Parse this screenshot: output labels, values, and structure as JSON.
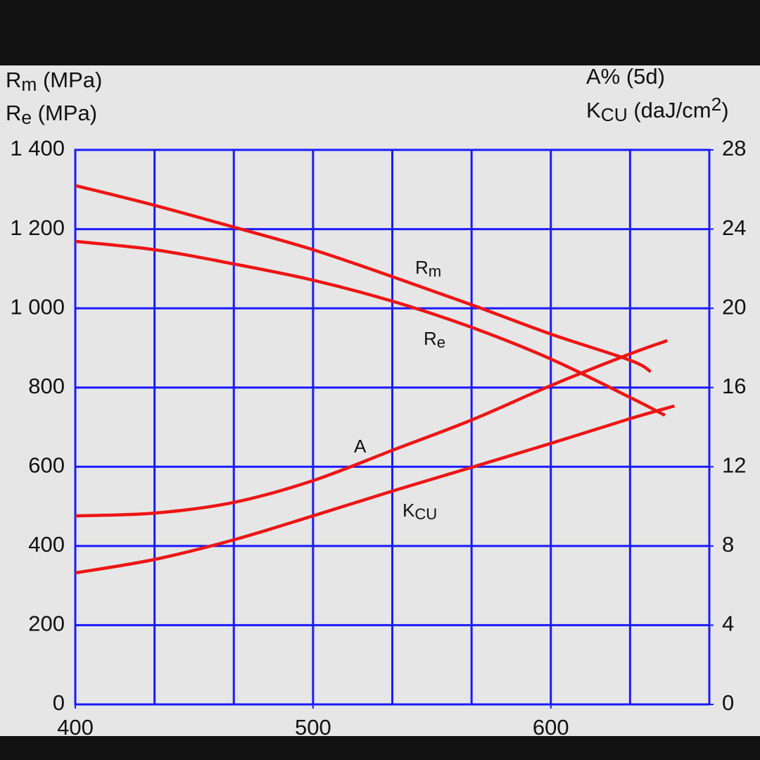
{
  "chart_data": {
    "type": "line",
    "ylabel": [
      {
        "text": "R",
        "sub": "m",
        "after": " (MPa)"
      },
      {
        "text": "R",
        "sub": "e",
        "after": " (MPa)"
      }
    ],
    "y2label": [
      {
        "text": "A% (5d)"
      },
      {
        "text": "K",
        "sub": "CU",
        "after": " (daJ/cm",
        "sup": "2",
        "end": ")"
      }
    ],
    "xlim": [
      400,
      666.67
    ],
    "xticks": [
      400,
      500,
      600
    ],
    "xgrid": [
      400,
      433.33,
      466.67,
      500,
      533.33,
      566.67,
      600,
      633.33,
      666.67
    ],
    "ylim": [
      0,
      1400
    ],
    "yticks": [
      0,
      200,
      400,
      600,
      800,
      {
        "value": 1000,
        "label": "1 000"
      },
      {
        "value": 1200,
        "label": "1 200"
      },
      {
        "value": 1400,
        "label": "1 400"
      }
    ],
    "y2lim": [
      0,
      28
    ],
    "y2ticks": [
      0,
      4,
      8,
      12,
      16,
      20,
      24,
      28
    ],
    "grid": true,
    "grid_color": "#1a1aff",
    "series": [
      {
        "label": {
          "text": "R",
          "sub": "m"
        },
        "color": "#ee1515",
        "x": [
          400,
          433.33,
          466.67,
          500,
          533.33,
          566.67,
          600,
          633.33,
          642
        ],
        "values": [
          1310,
          1260,
          1205,
          1148,
          1080,
          1009,
          935,
          869,
          840
        ]
      },
      {
        "label": {
          "text": "R",
          "sub": "e"
        },
        "color": "#ee1515",
        "x": [
          400,
          433.33,
          466.67,
          500,
          533.33,
          566.67,
          600,
          633.33,
          648
        ],
        "values": [
          1169,
          1148,
          1112,
          1071,
          1018,
          952,
          872,
          775,
          730
        ]
      },
      {
        "label": {
          "text": "A"
        },
        "color": "#ee1515",
        "axis": "y2",
        "x": [
          400,
          433.33,
          466.67,
          500,
          533.33,
          566.67,
          600,
          633.33,
          649
        ],
        "values": [
          9.52,
          9.66,
          10.2,
          11.3,
          12.83,
          14.36,
          16.1,
          17.7,
          18.37
        ]
      },
      {
        "label": {
          "text": "K",
          "sub": "CU"
        },
        "color": "#ee1515",
        "axis": "y2",
        "x": [
          400,
          433.33,
          466.67,
          500,
          533.33,
          566.67,
          600,
          633.33,
          652
        ],
        "values": [
          6.64,
          7.32,
          8.31,
          9.52,
          10.77,
          11.97,
          13.18,
          14.43,
          15.07
        ]
      }
    ]
  }
}
